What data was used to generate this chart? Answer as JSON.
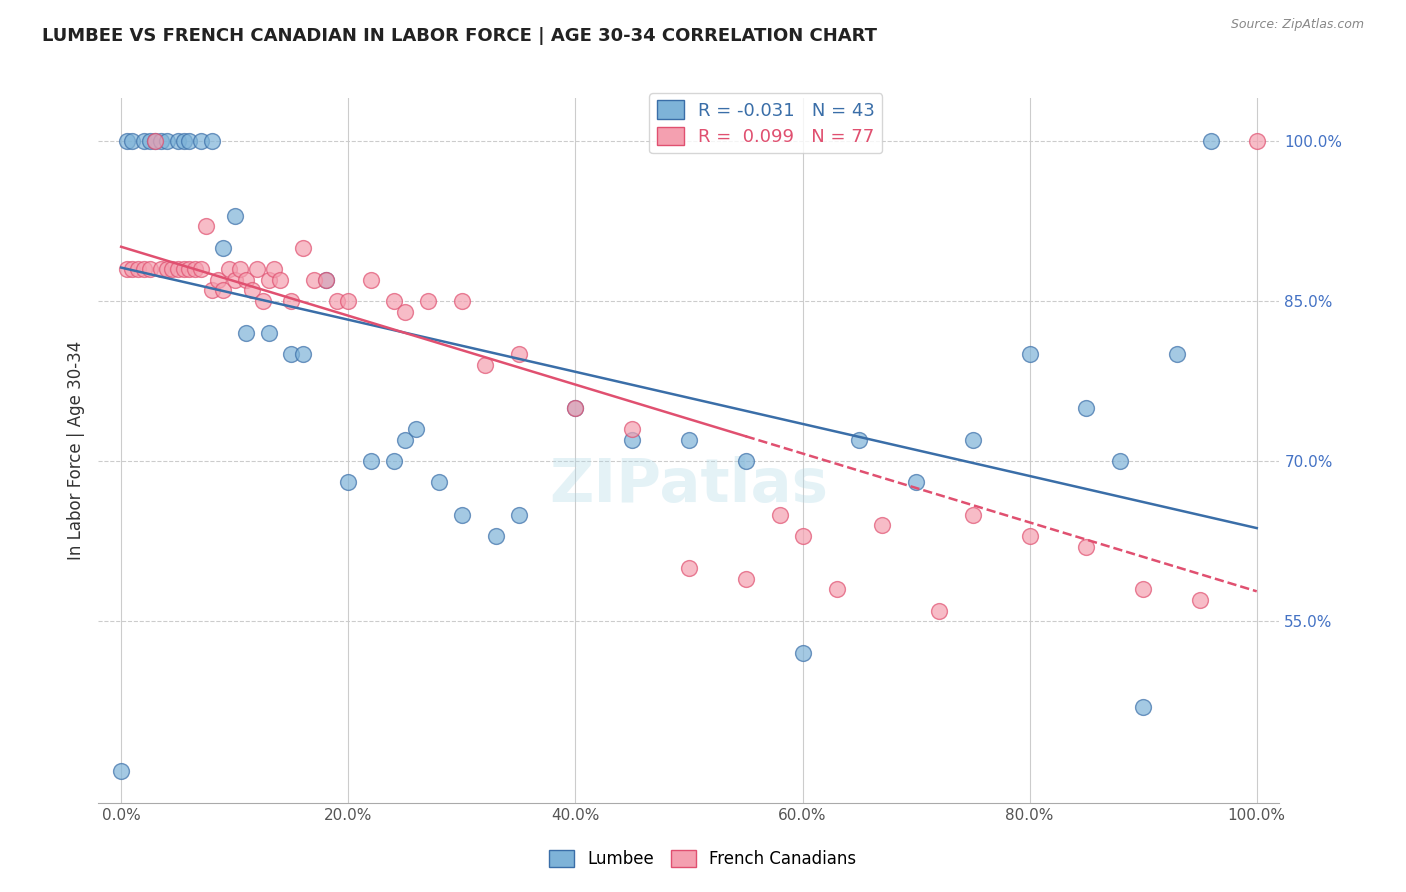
{
  "title": "LUMBEE VS FRENCH CANADIAN IN LABOR FORCE | AGE 30-34 CORRELATION CHART",
  "source": "Source: ZipAtlas.com",
  "ylabel": "In Labor Force | Age 30-34",
  "lumbee_R": -0.031,
  "lumbee_N": 43,
  "french_R": 0.099,
  "french_N": 77,
  "lumbee_color": "#7EB3D8",
  "french_color": "#F4A0B0",
  "lumbee_line_color": "#3A6EA8",
  "french_line_color": "#E05070",
  "lumbee_x": [
    0.0,
    0.5,
    1.0,
    2.0,
    2.5,
    3.0,
    3.5,
    4.0,
    5.0,
    5.5,
    6.0,
    7.0,
    8.0,
    9.0,
    10.0,
    11.0,
    13.0,
    15.0,
    16.0,
    18.0,
    20.0,
    22.0,
    24.0,
    25.0,
    26.0,
    28.0,
    30.0,
    33.0,
    35.0,
    40.0,
    45.0,
    50.0,
    55.0,
    60.0,
    65.0,
    70.0,
    75.0,
    80.0,
    85.0,
    88.0,
    90.0,
    93.0,
    96.0
  ],
  "lumbee_y": [
    41.0,
    100.0,
    100.0,
    100.0,
    100.0,
    100.0,
    100.0,
    100.0,
    100.0,
    100.0,
    100.0,
    100.0,
    100.0,
    90.0,
    93.0,
    82.0,
    82.0,
    80.0,
    80.0,
    87.0,
    68.0,
    70.0,
    70.0,
    72.0,
    73.0,
    68.0,
    65.0,
    63.0,
    65.0,
    75.0,
    72.0,
    72.0,
    70.0,
    52.0,
    72.0,
    68.0,
    72.0,
    80.0,
    75.0,
    70.0,
    47.0,
    80.0,
    100.0
  ],
  "french_x": [
    0.5,
    1.0,
    1.5,
    2.0,
    2.5,
    3.0,
    3.5,
    4.0,
    4.5,
    5.0,
    5.5,
    6.0,
    6.5,
    7.0,
    7.5,
    8.0,
    8.5,
    9.0,
    9.5,
    10.0,
    10.5,
    11.0,
    11.5,
    12.0,
    12.5,
    13.0,
    13.5,
    14.0,
    15.0,
    16.0,
    17.0,
    18.0,
    19.0,
    20.0,
    22.0,
    24.0,
    25.0,
    27.0,
    30.0,
    32.0,
    35.0,
    40.0,
    45.0,
    50.0,
    55.0,
    58.0,
    60.0,
    63.0,
    67.0,
    72.0,
    75.0,
    80.0,
    85.0,
    90.0,
    95.0,
    100.0
  ],
  "french_y": [
    88.0,
    88.0,
    88.0,
    88.0,
    88.0,
    100.0,
    88.0,
    88.0,
    88.0,
    88.0,
    88.0,
    88.0,
    88.0,
    88.0,
    92.0,
    86.0,
    87.0,
    86.0,
    88.0,
    87.0,
    88.0,
    87.0,
    86.0,
    88.0,
    85.0,
    87.0,
    88.0,
    87.0,
    85.0,
    90.0,
    87.0,
    87.0,
    85.0,
    85.0,
    87.0,
    85.0,
    84.0,
    85.0,
    85.0,
    79.0,
    80.0,
    75.0,
    73.0,
    60.0,
    59.0,
    65.0,
    63.0,
    58.0,
    64.0,
    56.0,
    65.0,
    63.0,
    62.0,
    58.0,
    57.0,
    100.0
  ],
  "ytick_positions": [
    55.0,
    70.0,
    85.0,
    100.0
  ],
  "ytick_labels": [
    "55.0%",
    "70.0%",
    "85.0%",
    "100.0%"
  ],
  "xtick_positions": [
    0.0,
    20.0,
    40.0,
    60.0,
    80.0,
    100.0
  ],
  "xtick_labels": [
    "0.0%",
    "20.0%",
    "40.0%",
    "60.0%",
    "80.0%",
    "100.0%"
  ],
  "xlim": [
    -2,
    102
  ],
  "ylim": [
    38,
    104
  ]
}
